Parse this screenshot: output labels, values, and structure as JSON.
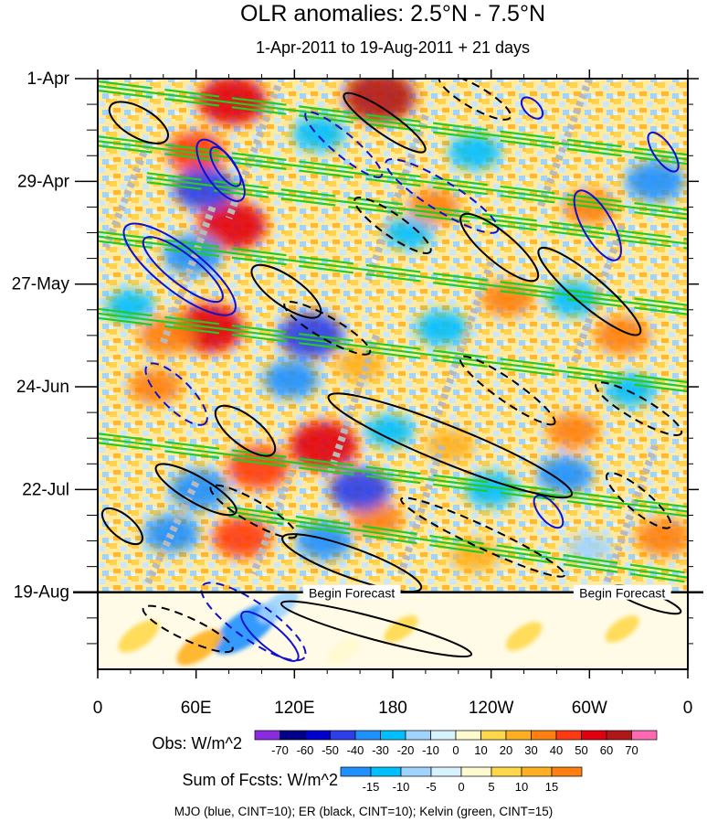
{
  "chart_data": {
    "type": "heatmap",
    "title": "OLR anomalies: 2.5°N - 7.5°N",
    "subtitle": "1-Apr-2011 to 19-Aug-2011 + 21 days",
    "x_axis": {
      "tick_labels": [
        "0",
        "60E",
        "120E",
        "180",
        "120W",
        "60W",
        "0"
      ],
      "tick_values_deg_east": [
        0,
        60,
        120,
        180,
        240,
        300,
        360
      ],
      "range": [
        0,
        360
      ]
    },
    "y_axis": {
      "tick_labels": [
        "1-Apr",
        "29-Apr",
        "27-May",
        "24-Jun",
        "22-Jul",
        "19-Aug"
      ],
      "tick_values_day": [
        0,
        28,
        56,
        84,
        112,
        140
      ],
      "range_day": [
        0,
        161
      ],
      "direction": "time increases downward"
    },
    "forecast": {
      "start_day": 140,
      "label": "Begin Forecast",
      "labels": [
        {
          "text": "Begin Forecast",
          "lon": 155
        },
        {
          "text": "Begin Forecast",
          "lon": 320
        }
      ]
    },
    "colorbars": [
      {
        "title": "Obs: W/m^2",
        "labels": [
          "-70",
          "-60",
          "-50",
          "-40",
          "-30",
          "-20",
          "-10",
          "0",
          "10",
          "20",
          "30",
          "40",
          "50",
          "60",
          "70"
        ],
        "colors": [
          "#8a2be2",
          "#00008b",
          "#0000cd",
          "#2c3fe8",
          "#1e90ff",
          "#00bfff",
          "#9fd4ff",
          "#d8f1ff",
          "#fffacd",
          "#ffd84a",
          "#ffb020",
          "#ff8010",
          "#ff3a10",
          "#e00010",
          "#b01818",
          "#ff69b4"
        ]
      },
      {
        "title": "Sum of Fcsts: W/m^2",
        "labels": [
          "-15",
          "-10",
          "-5",
          "0",
          "5",
          "10",
          "15"
        ],
        "colors": [
          "#1e90ff",
          "#00bfff",
          "#9fd4ff",
          "#d8f1ff",
          "#fffacd",
          "#ffd84a",
          "#ffb020",
          "#ff8010"
        ]
      }
    ],
    "contour_legend": "MJO (blue, CINT=10); ER (black, CINT=10); Kelvin (green, CINT=15)",
    "series": [
      {
        "name": "MJO",
        "color": "#1010d0",
        "cint": 10
      },
      {
        "name": "ER",
        "color": "#000000",
        "cint": 10
      },
      {
        "name": "Kelvin",
        "color": "#22cc22",
        "cint": 15
      }
    ],
    "anomalies": [
      {
        "lon": 82,
        "day": 6,
        "val": 55
      },
      {
        "lon": 172,
        "day": 5,
        "val": 60
      },
      {
        "lon": 60,
        "day": 20,
        "val": 40
      },
      {
        "lon": 82,
        "day": 40,
        "val": 55
      },
      {
        "lon": 68,
        "day": 68,
        "val": 55
      },
      {
        "lon": 42,
        "day": 70,
        "val": 35
      },
      {
        "lon": 138,
        "day": 100,
        "val": 55
      },
      {
        "lon": 98,
        "day": 106,
        "val": 45
      },
      {
        "lon": 88,
        "day": 125,
        "val": 40
      },
      {
        "lon": 35,
        "day": 84,
        "val": 30
      },
      {
        "lon": 250,
        "day": 60,
        "val": 30
      },
      {
        "lon": 320,
        "day": 70,
        "val": 35
      },
      {
        "lon": 290,
        "day": 96,
        "val": 30
      },
      {
        "lon": 205,
        "day": 35,
        "val": 30
      },
      {
        "lon": 300,
        "day": 35,
        "val": 30
      },
      {
        "lon": 170,
        "day": 120,
        "val": 30
      },
      {
        "lon": 160,
        "day": 78,
        "val": 25
      },
      {
        "lon": 345,
        "day": 125,
        "val": 35
      },
      {
        "lon": 215,
        "day": 100,
        "val": 25
      },
      {
        "lon": 230,
        "day": 130,
        "val": 25
      },
      {
        "lon": 65,
        "day": 30,
        "val": -45
      },
      {
        "lon": 58,
        "day": 48,
        "val": -40
      },
      {
        "lon": 130,
        "day": 70,
        "val": -50
      },
      {
        "lon": 118,
        "day": 82,
        "val": -35
      },
      {
        "lon": 160,
        "day": 112,
        "val": -45
      },
      {
        "lon": 138,
        "day": 126,
        "val": -35
      },
      {
        "lon": 62,
        "day": 112,
        "val": -40
      },
      {
        "lon": 45,
        "day": 124,
        "val": -35
      },
      {
        "lon": 210,
        "day": 68,
        "val": -30
      },
      {
        "lon": 135,
        "day": 15,
        "val": -30
      },
      {
        "lon": 230,
        "day": 20,
        "val": -30
      },
      {
        "lon": 290,
        "day": 60,
        "val": -30
      },
      {
        "lon": 340,
        "day": 28,
        "val": -40
      },
      {
        "lon": 285,
        "day": 108,
        "val": -35
      },
      {
        "lon": 240,
        "day": 112,
        "val": -30
      },
      {
        "lon": 325,
        "day": 85,
        "val": -25
      },
      {
        "lon": 190,
        "day": 42,
        "val": -25
      },
      {
        "lon": 20,
        "day": 62,
        "val": -25
      },
      {
        "lon": 178,
        "day": 96,
        "val": -25
      },
      {
        "lon": 300,
        "day": 128,
        "val": -20
      }
    ],
    "fcst_anomalies": [
      {
        "lon": 90,
        "day": 150,
        "val": -18
      },
      {
        "lon": 110,
        "day": 144,
        "val": -8
      },
      {
        "lon": 25,
        "day": 152,
        "val": 8
      },
      {
        "lon": 62,
        "day": 155,
        "val": 10
      },
      {
        "lon": 185,
        "day": 150,
        "val": 5
      },
      {
        "lon": 260,
        "day": 152,
        "val": 6
      },
      {
        "lon": 320,
        "day": 150,
        "val": 5
      },
      {
        "lon": 150,
        "day": 156,
        "val": 4
      }
    ],
    "kelvin_bands": [
      {
        "lon0": 0,
        "day0": 2,
        "lon1": 360,
        "day1": 22
      },
      {
        "lon0": 0,
        "day0": 17,
        "lon1": 360,
        "day1": 37
      },
      {
        "lon0": 30,
        "day0": 27,
        "lon1": 360,
        "day1": 45
      },
      {
        "lon0": 0,
        "day0": 43,
        "lon1": 360,
        "day1": 63
      },
      {
        "lon0": 0,
        "day0": 64,
        "lon1": 360,
        "day1": 84
      },
      {
        "lon0": 0,
        "day0": 98,
        "lon1": 360,
        "day1": 118
      },
      {
        "lon0": 80,
        "day0": 118,
        "lon1": 360,
        "day1": 136
      }
    ],
    "grey_bands": [
      {
        "lon0": 30,
        "day0": 18,
        "lon1": 5,
        "day1": 46
      },
      {
        "lon0": 70,
        "day0": 35,
        "lon1": 40,
        "day1": 72
      },
      {
        "lon0": 110,
        "day0": 2,
        "lon1": 80,
        "day1": 38
      },
      {
        "lon0": 200,
        "day0": 10,
        "lon1": 165,
        "day1": 55
      },
      {
        "lon0": 240,
        "day0": 50,
        "lon1": 205,
        "day1": 95
      },
      {
        "lon0": 170,
        "day0": 70,
        "lon1": 140,
        "day1": 110
      },
      {
        "lon0": 120,
        "day0": 105,
        "lon1": 95,
        "day1": 135
      },
      {
        "lon0": 210,
        "day0": 100,
        "lon1": 185,
        "day1": 135
      },
      {
        "lon0": 300,
        "day0": 0,
        "lon1": 270,
        "day1": 35
      },
      {
        "lon0": 320,
        "day0": 40,
        "lon1": 290,
        "day1": 78
      },
      {
        "lon0": 340,
        "day0": 100,
        "lon1": 310,
        "day1": 138
      },
      {
        "lon0": 60,
        "day0": 110,
        "lon1": 30,
        "day1": 138
      }
    ],
    "mjo_contours": [
      {
        "lon": 50,
        "day": 52,
        "rlon": 42,
        "rday": 6,
        "angle": 38,
        "dashed": false
      },
      {
        "lon": 52,
        "day": 52,
        "rlon": 30,
        "rday": 4,
        "angle": 38,
        "dashed": false
      },
      {
        "lon": 75,
        "day": 25,
        "rlon": 22,
        "rday": 4,
        "angle": 55,
        "dashed": false
      },
      {
        "lon": 78,
        "day": 24,
        "rlon": 14,
        "rday": 2.5,
        "angle": 55,
        "dashed": false
      },
      {
        "lon": 305,
        "day": 40,
        "rlon": 24,
        "rday": 4,
        "angle": 60,
        "dashed": false
      },
      {
        "lon": 275,
        "day": 118,
        "rlon": 12,
        "rday": 2.5,
        "angle": 50,
        "dashed": false
      },
      {
        "lon": 345,
        "day": 20,
        "rlon": 14,
        "rday": 2.5,
        "angle": 55,
        "dashed": false
      },
      {
        "lon": 265,
        "day": 8,
        "rlon": 8,
        "rday": 2,
        "angle": 45,
        "dashed": false
      },
      {
        "lon": 150,
        "day": 18,
        "rlon": 30,
        "rday": 3,
        "angle": 40,
        "dashed": true
      },
      {
        "lon": 210,
        "day": 32,
        "rlon": 40,
        "rday": 4,
        "angle": 32,
        "dashed": true
      },
      {
        "lon": 48,
        "day": 86,
        "rlon": 25,
        "rday": 4,
        "angle": 45,
        "dashed": true
      },
      {
        "lon": 105,
        "day": 152,
        "rlon": 22,
        "rday": 3,
        "angle": 40,
        "dashed": false
      },
      {
        "lon": 95,
        "day": 148,
        "rlon": 38,
        "rday": 5,
        "angle": 35,
        "dashed": true
      }
    ],
    "er_contours": [
      {
        "lon": 25,
        "day": 12,
        "rlon": 20,
        "rday": 4,
        "angle": 30,
        "dashed": false
      },
      {
        "lon": 115,
        "day": 58,
        "rlon": 25,
        "rday": 4,
        "angle": 35,
        "dashed": false
      },
      {
        "lon": 90,
        "day": 96,
        "rlon": 22,
        "rday": 4,
        "angle": 38,
        "dashed": false
      },
      {
        "lon": 215,
        "day": 100,
        "rlon": 80,
        "rday": 5,
        "angle": 22,
        "dashed": false
      },
      {
        "lon": 155,
        "day": 132,
        "rlon": 45,
        "rday": 4,
        "angle": 20,
        "dashed": false
      },
      {
        "lon": 245,
        "day": 46,
        "rlon": 30,
        "rday": 4,
        "angle": 40,
        "dashed": false
      },
      {
        "lon": 300,
        "day": 58,
        "rlon": 40,
        "rday": 4,
        "angle": 40,
        "dashed": false
      },
      {
        "lon": 60,
        "day": 112,
        "rlon": 28,
        "rday": 3.5,
        "angle": 30,
        "dashed": false
      },
      {
        "lon": 170,
        "day": 150,
        "rlon": 60,
        "rday": 3,
        "angle": 15,
        "dashed": false
      },
      {
        "lon": 335,
        "day": 142,
        "rlon": 22,
        "rday": 2,
        "angle": 20,
        "dashed": false
      },
      {
        "lon": 175,
        "day": 12,
        "rlon": 30,
        "rday": 3,
        "angle": 35,
        "dashed": false
      },
      {
        "lon": 15,
        "day": 122,
        "rlon": 15,
        "rday": 3,
        "angle": 40,
        "dashed": false
      },
      {
        "lon": 180,
        "day": 40,
        "rlon": 28,
        "rday": 3,
        "angle": 35,
        "dashed": true
      },
      {
        "lon": 140,
        "day": 68,
        "rlon": 30,
        "rday": 3,
        "angle": 30,
        "dashed": true
      },
      {
        "lon": 330,
        "day": 90,
        "rlon": 30,
        "rday": 3,
        "angle": 30,
        "dashed": true
      },
      {
        "lon": 235,
        "day": 125,
        "rlon": 55,
        "rday": 3,
        "angle": 25,
        "dashed": true
      },
      {
        "lon": 95,
        "day": 118,
        "rlon": 30,
        "rday": 3,
        "angle": 30,
        "dashed": true
      },
      {
        "lon": 55,
        "day": 150,
        "rlon": 30,
        "rday": 3,
        "angle": 25,
        "dashed": true
      },
      {
        "lon": 330,
        "day": 115,
        "rlon": 25,
        "rday": 3,
        "angle": 40,
        "dashed": true
      },
      {
        "lon": 250,
        "day": 85,
        "rlon": 35,
        "rday": 3,
        "angle": 35,
        "dashed": true
      },
      {
        "lon": 230,
        "day": 5,
        "rlon": 25,
        "rday": 3,
        "angle": 30,
        "dashed": true
      }
    ]
  }
}
